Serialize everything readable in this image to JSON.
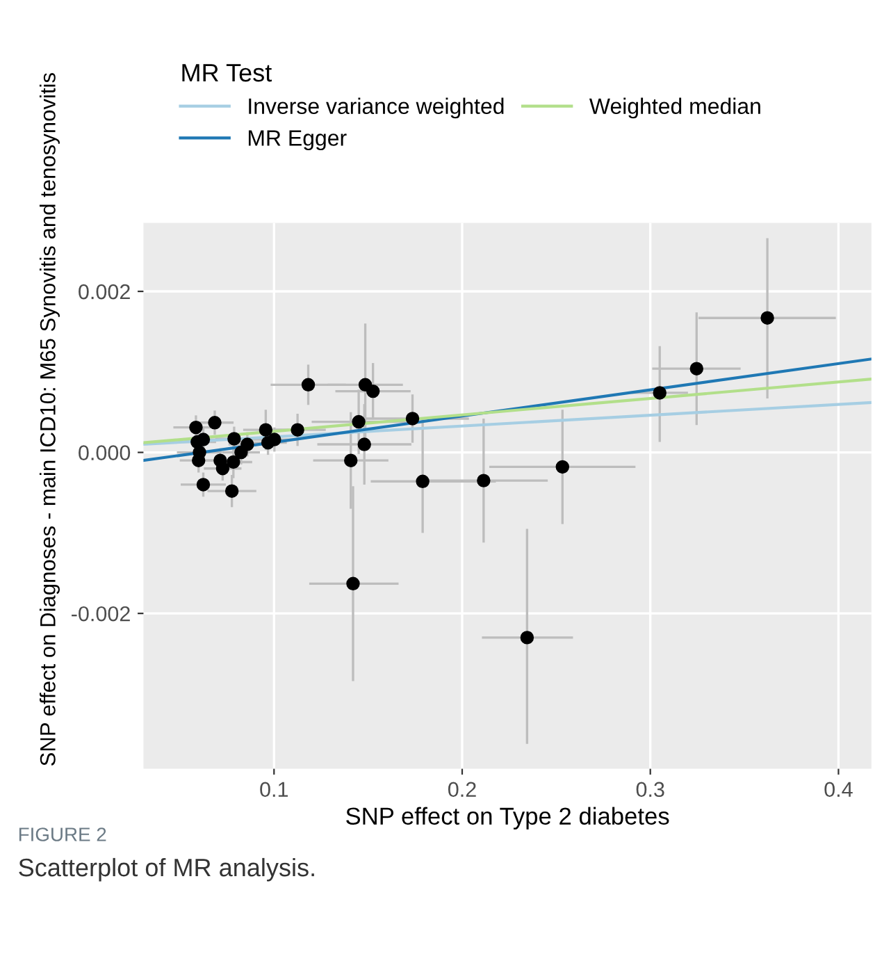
{
  "chart_data": {
    "type": "scatter",
    "xlabel": "SNP effect on Type 2 diabetes",
    "ylabel": "SNP effect on Diagnoses - main ICD10: M65 Synovitis and tenosynovitis",
    "legend_title": "MR Test",
    "xlim": [
      0.0306,
      0.4175
    ],
    "ylim": [
      -0.00393,
      0.00285
    ],
    "xticks": [
      0.1,
      0.2,
      0.3,
      0.4
    ],
    "yticks": [
      {
        "value": 0.002,
        "label": "0.002"
      },
      {
        "value": 0.0,
        "label": "0.000"
      },
      {
        "value": -0.002,
        "label": "-0.002"
      }
    ],
    "grid": true,
    "legend": "top",
    "annotations": [
      "FIGURE 2",
      "Scatterplot of MR analysis."
    ],
    "series": [
      {
        "color": "#000000",
        "marker": "circle",
        "x": [
          0.0585,
          0.0685,
          0.0624,
          0.0592,
          0.0604,
          0.0599,
          0.0788,
          0.0714,
          0.0727,
          0.0624,
          0.0776,
          0.0784,
          0.0825,
          0.0858,
          0.0956,
          0.0968,
          0.1002,
          0.1125,
          0.1182,
          0.1485,
          0.1526,
          0.145,
          0.148,
          0.1408,
          0.1736,
          0.179,
          0.2114,
          0.142,
          0.2345,
          0.2533,
          0.305,
          0.3246,
          0.3622
        ],
        "values": [
          0.00031,
          0.00037,
          0.00016,
          0.00013,
          0.0,
          -0.0001,
          0.00017,
          -0.0001,
          -0.0002,
          -0.0004,
          -0.00048,
          -0.00012,
          0.0,
          0.0001,
          0.00028,
          0.00012,
          0.00016,
          0.00028,
          0.00084,
          0.00084,
          0.00076,
          0.00038,
          0.0001,
          -0.0001,
          0.00042,
          -0.00036,
          -0.00035,
          -0.00163,
          -0.0023,
          -0.00018,
          0.00074,
          0.00104,
          0.00167
        ],
        "xerrors": [
          0.012,
          0.01,
          0.01,
          0.01,
          0.012,
          0.01,
          0.01,
          0.01,
          0.01,
          0.012,
          0.013,
          0.01,
          0.01,
          0.01,
          0.012,
          0.01,
          0.012,
          0.015,
          0.02,
          0.02,
          0.02,
          0.025,
          0.025,
          0.02,
          0.03,
          [
            0.1514,
            0.2179
          ],
          [
            0.177,
            0.2455
          ],
          [
            0.1187,
            0.1662
          ],
          [
            0.2105,
            0.2589
          ],
          [
            0.2144,
            0.2921
          ],
          0.015,
          [
            0.301,
            0.348
          ],
          [
            0.3256,
            0.3986
          ]
        ],
        "errors": [
          0.00015,
          0.00015,
          0.00015,
          0.00015,
          0.00015,
          0.00015,
          0.00015,
          0.00015,
          0.00015,
          0.00015,
          0.0002,
          0.0002,
          0.00015,
          0.00015,
          0.00025,
          0.00015,
          0.00015,
          0.0002,
          0.00025,
          [
            0.0001,
            0.0016
          ],
          0.00035,
          0.0004,
          0.0005,
          0.0006,
          0.0003,
          [
            -0.001,
            0.00043
          ],
          [
            -0.00112,
            0.00042
          ],
          [
            -0.00284,
            -0.00042
          ],
          [
            -0.00362,
            -0.00095
          ],
          [
            -0.00089,
            0.00053
          ],
          [
            0.00013,
            0.00132
          ],
          [
            0.00034,
            0.00174
          ],
          [
            0.00067,
            0.00266
          ]
        ]
      },
      {
        "type": "line",
        "name": "Inverse variance weighted",
        "color": "#a6cee3",
        "x": [
          0.0306,
          0.4175
        ],
        "values": [
          0.0001,
          0.00062
        ]
      },
      {
        "type": "line",
        "name": "MR Egger",
        "color": "#1f78b4",
        "x": [
          0.0306,
          0.4175
        ],
        "values": [
          -0.0001,
          0.00116
        ]
      },
      {
        "type": "line",
        "name": "Weighted median",
        "color": "#b2df8a",
        "x": [
          0.0306,
          0.4175
        ],
        "values": [
          0.00012,
          0.00091
        ]
      }
    ]
  }
}
